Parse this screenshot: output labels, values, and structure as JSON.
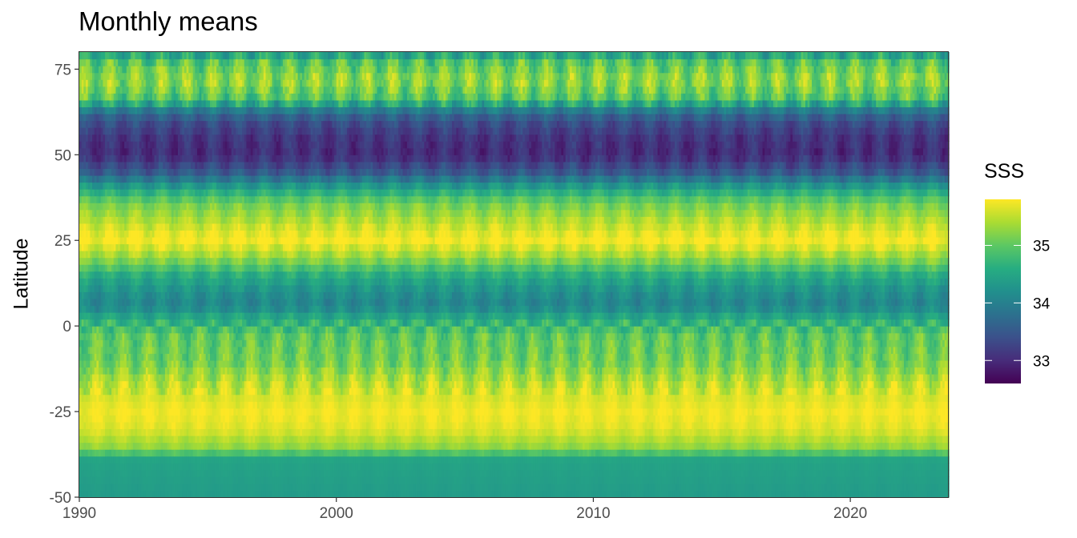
{
  "chart_data": {
    "type": "heatmap",
    "title": "Monthly means",
    "xlabel": "",
    "ylabel": "Latitude",
    "xlim": [
      1990,
      2023.8
    ],
    "ylim": [
      -50,
      80
    ],
    "x_ticks": [
      1990,
      2000,
      2010,
      2020
    ],
    "x_tick_labels": [
      "1990",
      "2000",
      "2010",
      "2020"
    ],
    "y_ticks": [
      -50,
      -25,
      0,
      25,
      50,
      75
    ],
    "y_tick_labels": [
      "-50",
      "-25",
      "0",
      "25",
      "50",
      "75"
    ],
    "grid": false,
    "legend": {
      "title": "SSS",
      "position": "right",
      "range": [
        32.6,
        35.8
      ],
      "ticks": [
        33,
        34,
        35
      ],
      "tick_labels": [
        "33",
        "34",
        "35"
      ],
      "colormap": [
        "#440154",
        "#472c7a",
        "#3b518b",
        "#2c718e",
        "#21908d",
        "#27ad81",
        "#5cc863",
        "#aadc32",
        "#fde725"
      ]
    },
    "latitude_profile": [
      {
        "lat": -50,
        "sss": 34.35
      },
      {
        "lat": -40,
        "sss": 34.45
      },
      {
        "lat": -38,
        "sss": 34.5
      },
      {
        "lat": -37,
        "sss": 34.9
      },
      {
        "lat": -35,
        "sss": 35.3
      },
      {
        "lat": -30,
        "sss": 35.65
      },
      {
        "lat": -25,
        "sss": 35.75
      },
      {
        "lat": -18,
        "sss": 35.55
      },
      {
        "lat": -10,
        "sss": 35.1
      },
      {
        "lat": -3,
        "sss": 35.0
      },
      {
        "lat": 2,
        "sss": 34.6
      },
      {
        "lat": 6,
        "sss": 34.05
      },
      {
        "lat": 10,
        "sss": 34.2
      },
      {
        "lat": 15,
        "sss": 34.6
      },
      {
        "lat": 20,
        "sss": 35.3
      },
      {
        "lat": 25,
        "sss": 35.8
      },
      {
        "lat": 30,
        "sss": 35.5
      },
      {
        "lat": 36,
        "sss": 35.1
      },
      {
        "lat": 40,
        "sss": 34.5
      },
      {
        "lat": 45,
        "sss": 33.5
      },
      {
        "lat": 50,
        "sss": 33.0
      },
      {
        "lat": 55,
        "sss": 33.1
      },
      {
        "lat": 60,
        "sss": 33.4
      },
      {
        "lat": 64,
        "sss": 34.1
      },
      {
        "lat": 66,
        "sss": 34.9
      },
      {
        "lat": 72,
        "sss": 35.3
      },
      {
        "lat": 78,
        "sss": 34.9
      },
      {
        "lat": 80,
        "sss": 34.2
      }
    ]
  }
}
